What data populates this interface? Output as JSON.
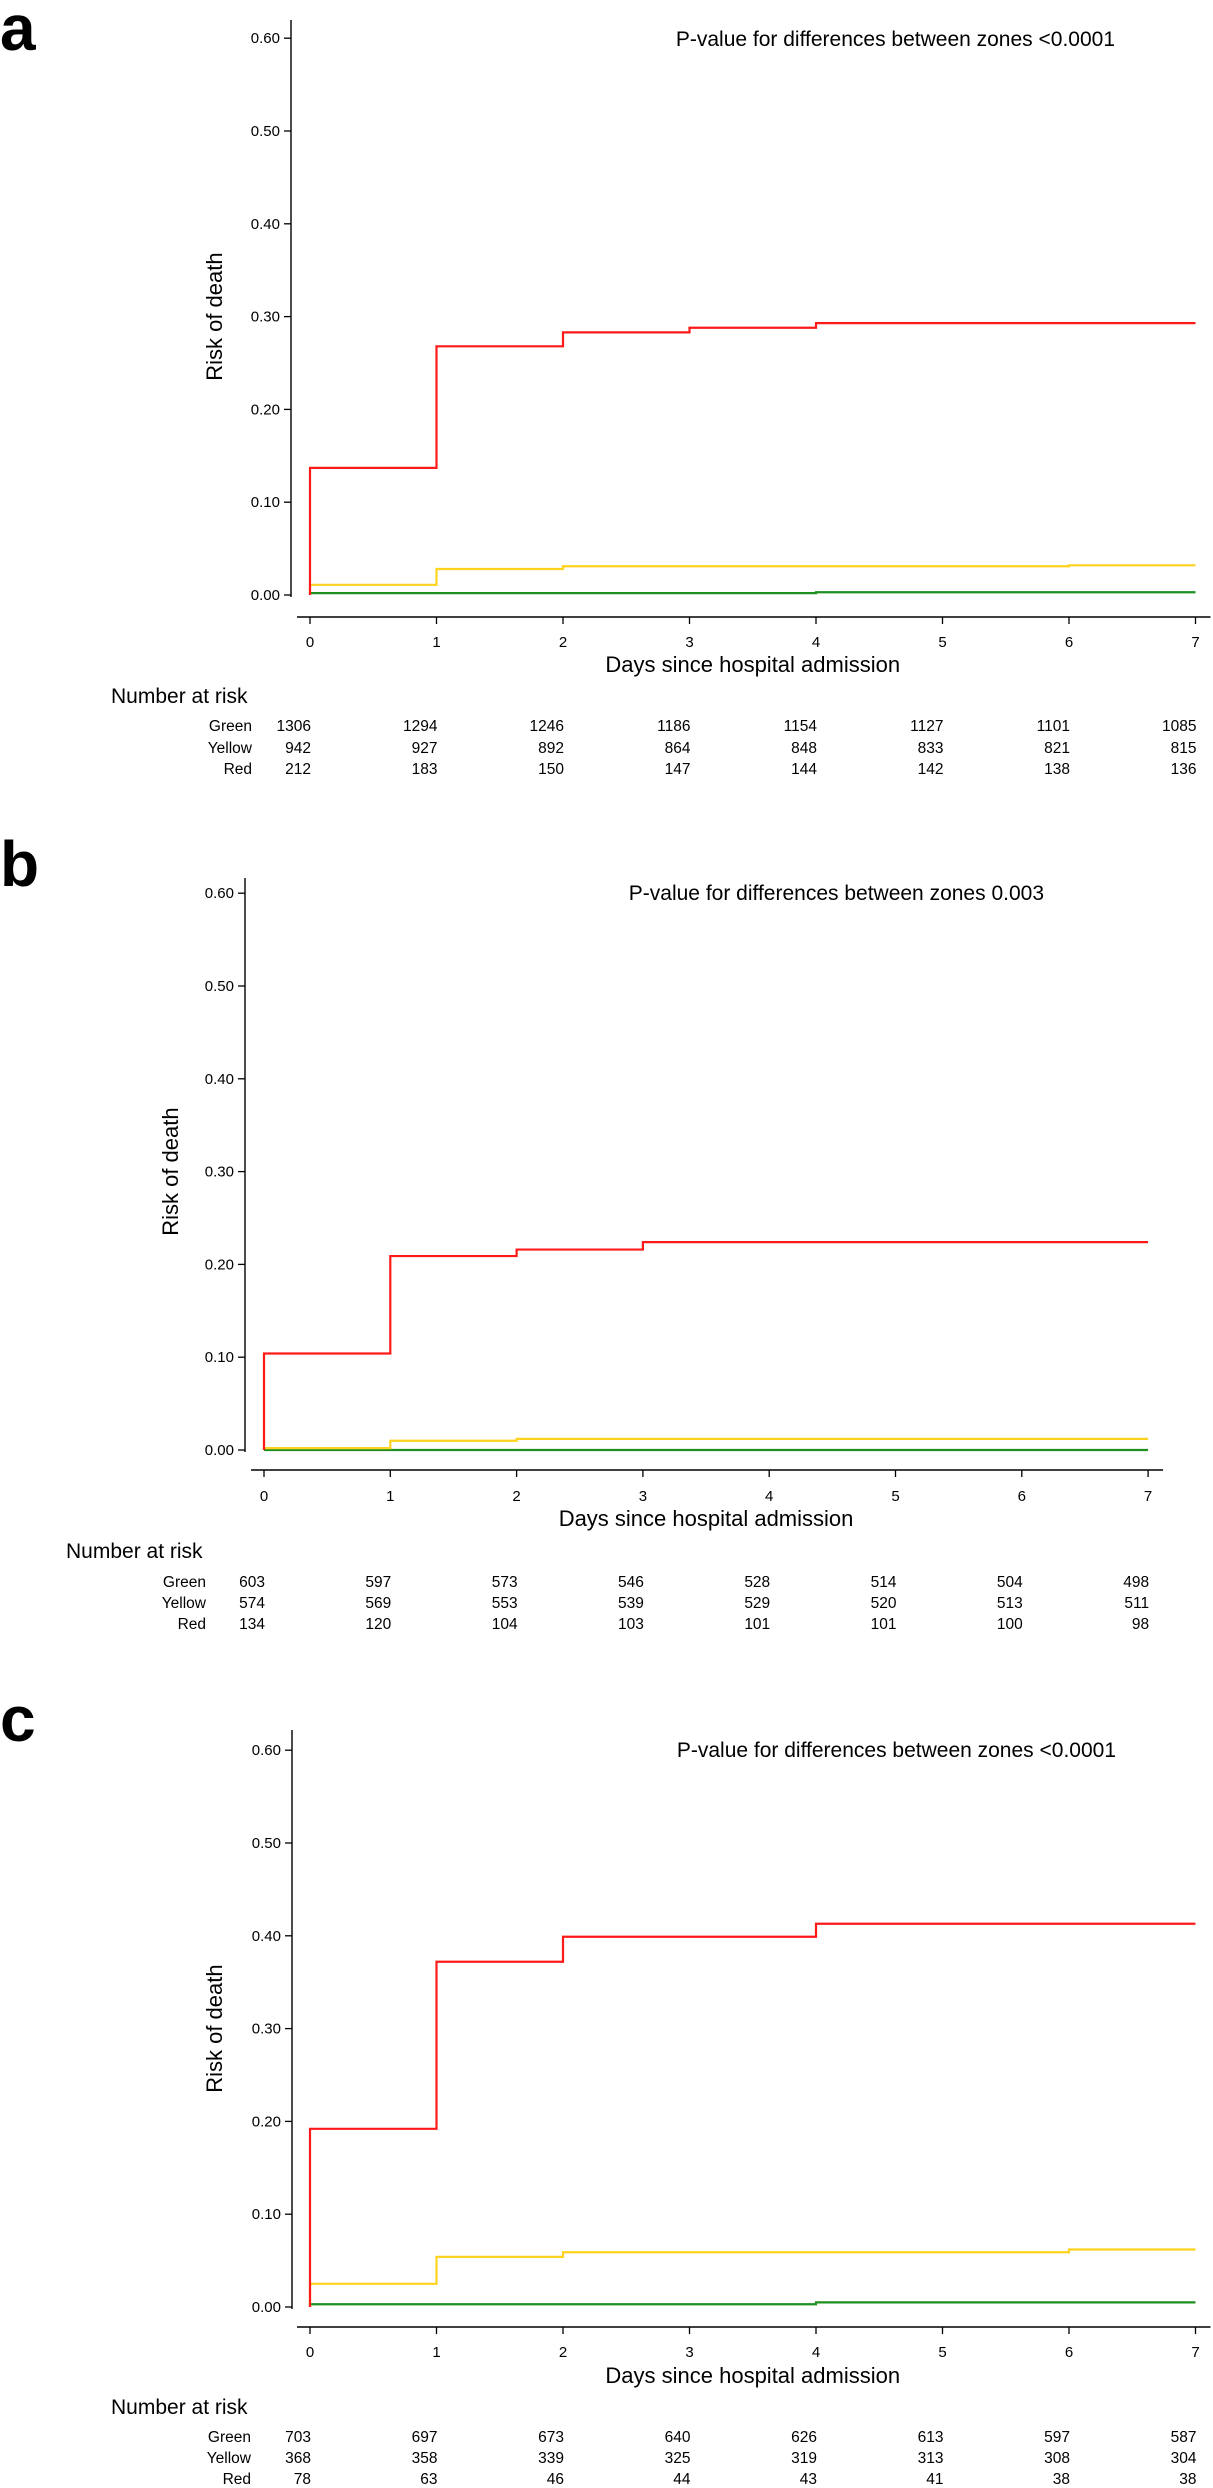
{
  "chart_data": [
    {
      "type": "line",
      "panel_label": "a",
      "annotation": "P-value for differences between zones <0.0001",
      "xlabel": "Days since hospital admission",
      "ylabel": "Risk of death",
      "xlim": [
        0,
        7
      ],
      "ylim": [
        0,
        0.6
      ],
      "x_ticks": [
        "0",
        "1",
        "2",
        "3",
        "4",
        "5",
        "6",
        "7"
      ],
      "y_ticks": [
        "0.00",
        "0.10",
        "0.20",
        "0.30",
        "0.40",
        "0.50",
        "0.60"
      ],
      "series": [
        {
          "name": "Red",
          "color": "#ff1a1a",
          "x": [
            0,
            1,
            2,
            3,
            4,
            7
          ],
          "y": [
            0.137,
            0.268,
            0.283,
            0.288,
            0.293,
            0.293
          ]
        },
        {
          "name": "Yellow",
          "color": "#ffd21f",
          "x": [
            0,
            1,
            2,
            3,
            4,
            5,
            6,
            7
          ],
          "y": [
            0.011,
            0.028,
            0.031,
            0.031,
            0.031,
            0.031,
            0.032,
            0.032
          ]
        },
        {
          "name": "Green",
          "color": "#1f8f1f",
          "x": [
            0,
            1,
            2,
            3,
            4,
            5,
            6,
            7
          ],
          "y": [
            0.002,
            0.002,
            0.002,
            0.002,
            0.003,
            0.003,
            0.003,
            0.003
          ]
        }
      ],
      "risk_table": {
        "title": "Number at risk",
        "rows": [
          {
            "label": "Green",
            "values": [
              "1306",
              "1294",
              "1246",
              "1186",
              "1154",
              "1127",
              "1101",
              "1085"
            ]
          },
          {
            "label": "Yellow",
            "values": [
              "942",
              "927",
              "892",
              "864",
              "848",
              "833",
              "821",
              "815"
            ]
          },
          {
            "label": "Red",
            "values": [
              "212",
              "183",
              "150",
              "147",
              "144",
              "142",
              "138",
              "136"
            ]
          }
        ]
      }
    },
    {
      "type": "line",
      "panel_label": "b",
      "annotation": "P-value for differences between zones 0.003",
      "xlabel": "Days since hospital admission",
      "ylabel": "Risk of death",
      "xlim": [
        0,
        7
      ],
      "ylim": [
        0,
        0.6
      ],
      "x_ticks": [
        "0",
        "1",
        "2",
        "3",
        "4",
        "5",
        "6",
        "7"
      ],
      "y_ticks": [
        "0.00",
        "0.10",
        "0.20",
        "0.30",
        "0.40",
        "0.50",
        "0.60"
      ],
      "series": [
        {
          "name": "Red",
          "color": "#ff1a1a",
          "x": [
            0,
            1,
            2,
            3,
            7
          ],
          "y": [
            0.104,
            0.209,
            0.216,
            0.224,
            0.224
          ]
        },
        {
          "name": "Yellow",
          "color": "#ffd21f",
          "x": [
            0,
            1,
            2,
            7
          ],
          "y": [
            0.002,
            0.01,
            0.012,
            0.012
          ]
        },
        {
          "name": "Green",
          "color": "#1f8f1f",
          "x": [
            0,
            7
          ],
          "y": [
            0.0,
            0.0
          ]
        }
      ],
      "risk_table": {
        "title": "Number at risk",
        "rows": [
          {
            "label": "Green",
            "values": [
              "603",
              "597",
              "573",
              "546",
              "528",
              "514",
              "504",
              "498"
            ]
          },
          {
            "label": "Yellow",
            "values": [
              "574",
              "569",
              "553",
              "539",
              "529",
              "520",
              "513",
              "511"
            ]
          },
          {
            "label": "Red",
            "values": [
              "134",
              "120",
              "104",
              "103",
              "101",
              "101",
              "100",
              "98"
            ]
          }
        ]
      }
    },
    {
      "type": "line",
      "panel_label": "c",
      "annotation": "P-value for differences between zones <0.0001",
      "xlabel": "Days since hospital admission",
      "ylabel": "Risk of death",
      "xlim": [
        0,
        7
      ],
      "ylim": [
        0,
        0.6
      ],
      "x_ticks": [
        "0",
        "1",
        "2",
        "3",
        "4",
        "5",
        "6",
        "7"
      ],
      "y_ticks": [
        "0.00",
        "0.10",
        "0.20",
        "0.30",
        "0.40",
        "0.50",
        "0.60"
      ],
      "series": [
        {
          "name": "Red",
          "color": "#ff1a1a",
          "x": [
            0,
            1,
            2,
            4,
            7
          ],
          "y": [
            0.192,
            0.372,
            0.399,
            0.413,
            0.413
          ]
        },
        {
          "name": "Yellow",
          "color": "#ffd21f",
          "x": [
            0,
            1,
            2,
            6,
            7
          ],
          "y": [
            0.025,
            0.054,
            0.059,
            0.062,
            0.062
          ]
        },
        {
          "name": "Green",
          "color": "#1f8f1f",
          "x": [
            0,
            4,
            7
          ],
          "y": [
            0.003,
            0.005,
            0.005
          ]
        }
      ],
      "risk_table": {
        "title": "Number at risk",
        "rows": [
          {
            "label": "Green",
            "values": [
              "703",
              "697",
              "673",
              "640",
              "626",
              "613",
              "597",
              "587"
            ]
          },
          {
            "label": "Yellow",
            "values": [
              "368",
              "358",
              "339",
              "325",
              "319",
              "313",
              "308",
              "304"
            ]
          },
          {
            "label": "Red",
            "values": [
              "78",
              "63",
              "46",
              "44",
              "43",
              "41",
              "38",
              "38"
            ]
          }
        ]
      }
    }
  ]
}
